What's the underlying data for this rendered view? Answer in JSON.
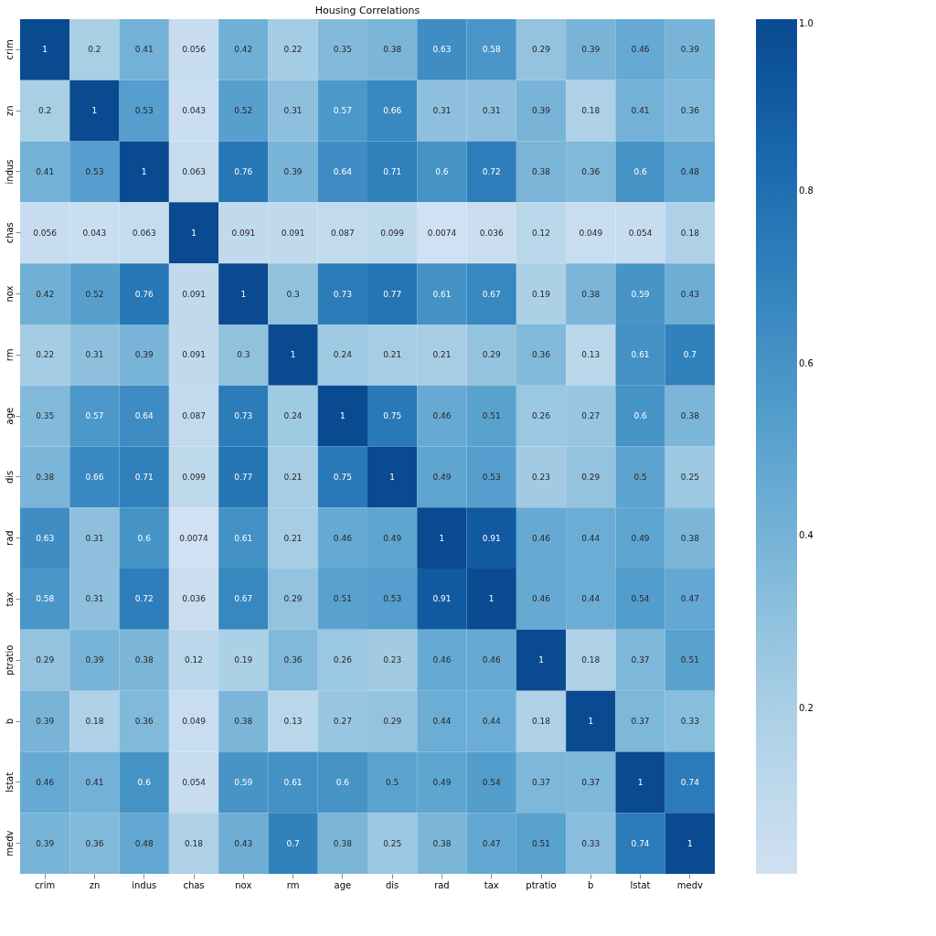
{
  "chart_data": {
    "type": "heatmap",
    "title": "Housing Correlations",
    "categories": [
      "crim",
      "zn",
      "indus",
      "chas",
      "nox",
      "rm",
      "age",
      "dis",
      "rad",
      "tax",
      "ptratio",
      "b",
      "lstat",
      "medv"
    ],
    "y_categories": [
      "crim",
      "zn",
      "indus",
      "chas",
      "nox",
      "rm",
      "age",
      "dis",
      "rad",
      "tax",
      "ptratio",
      "b",
      "lstat",
      "medv"
    ],
    "cells": [
      [
        1,
        0.2,
        0.41,
        0.056,
        0.42,
        0.22,
        0.35,
        0.38,
        0.63,
        0.58,
        0.29,
        0.39,
        0.46,
        0.39
      ],
      [
        0.2,
        1,
        0.53,
        0.043,
        0.52,
        0.31,
        0.57,
        0.66,
        0.31,
        0.31,
        0.39,
        0.18,
        0.41,
        0.36
      ],
      [
        0.41,
        0.53,
        1,
        0.063,
        0.76,
        0.39,
        0.64,
        0.71,
        0.6,
        0.72,
        0.38,
        0.36,
        0.6,
        0.48
      ],
      [
        0.056,
        0.043,
        0.063,
        1,
        0.091,
        0.091,
        0.087,
        0.099,
        0.0074,
        0.036,
        0.12,
        0.049,
        0.054,
        0.18
      ],
      [
        0.42,
        0.52,
        0.76,
        0.091,
        1,
        0.3,
        0.73,
        0.77,
        0.61,
        0.67,
        0.19,
        0.38,
        0.59,
        0.43
      ],
      [
        0.22,
        0.31,
        0.39,
        0.091,
        0.3,
        1,
        0.24,
        0.21,
        0.21,
        0.29,
        0.36,
        0.13,
        0.61,
        0.7
      ],
      [
        0.35,
        0.57,
        0.64,
        0.087,
        0.73,
        0.24,
        1,
        0.75,
        0.46,
        0.51,
        0.26,
        0.27,
        0.6,
        0.38
      ],
      [
        0.38,
        0.66,
        0.71,
        0.099,
        0.77,
        0.21,
        0.75,
        1,
        0.49,
        0.53,
        0.23,
        0.29,
        0.5,
        0.25
      ],
      [
        0.63,
        0.31,
        0.6,
        0.0074,
        0.61,
        0.21,
        0.46,
        0.49,
        1,
        0.91,
        0.46,
        0.44,
        0.49,
        0.38
      ],
      [
        0.58,
        0.31,
        0.72,
        0.036,
        0.67,
        0.29,
        0.51,
        0.53,
        0.91,
        1,
        0.46,
        0.44,
        0.54,
        0.47
      ],
      [
        0.29,
        0.39,
        0.38,
        0.12,
        0.19,
        0.36,
        0.26,
        0.23,
        0.46,
        0.46,
        1,
        0.18,
        0.37,
        0.51
      ],
      [
        0.39,
        0.18,
        0.36,
        0.049,
        0.38,
        0.13,
        0.27,
        0.29,
        0.44,
        0.44,
        0.18,
        1,
        0.37,
        0.33
      ],
      [
        0.46,
        0.41,
        0.6,
        0.054,
        0.59,
        0.61,
        0.6,
        0.5,
        0.49,
        0.54,
        0.37,
        0.37,
        1,
        0.74
      ],
      [
        0.39,
        0.36,
        0.48,
        0.18,
        0.43,
        0.7,
        0.38,
        0.25,
        0.38,
        0.47,
        0.51,
        0.33,
        0.74,
        1
      ]
    ],
    "clim": [
      0.0074,
      1
    ],
    "cticks": [
      0.2,
      0.4,
      0.6,
      0.8,
      {
        "value": 1,
        "label": "1.0"
      }
    ],
    "data_labels": true
  }
}
